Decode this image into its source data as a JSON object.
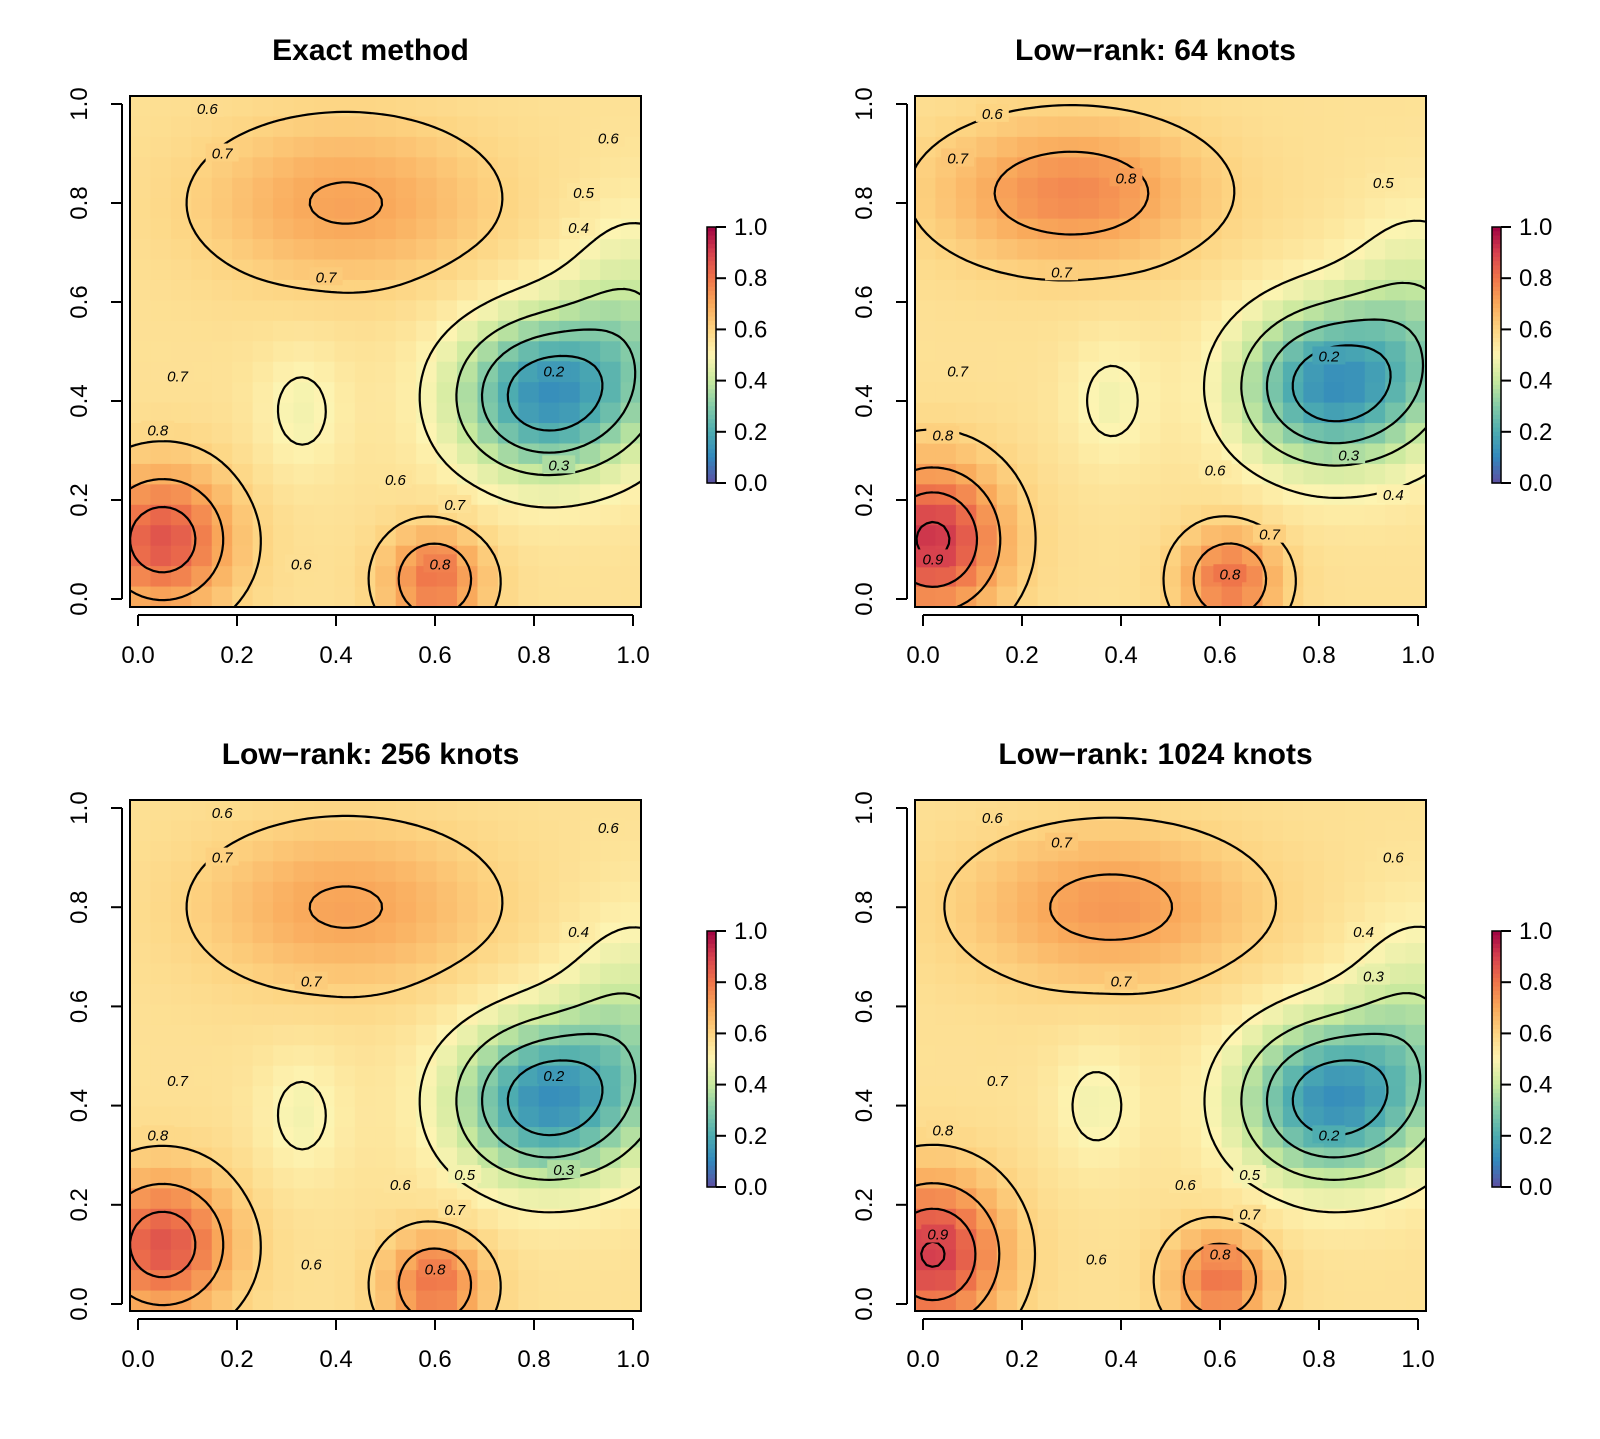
{
  "chart_data": [
    {
      "type": "heatmap",
      "title": "Exact method",
      "xlabel": "",
      "ylabel": "",
      "xlim": [
        0,
        1
      ],
      "ylim": [
        0,
        1
      ],
      "xticks": [
        "0.0",
        "0.2",
        "0.4",
        "0.6",
        "0.8",
        "1.0"
      ],
      "yticks": [
        "0.0",
        "0.2",
        "0.4",
        "0.6",
        "0.8",
        "1.0"
      ],
      "colorbar": {
        "range": [
          0,
          1
        ],
        "ticks": [
          "0.0",
          "0.2",
          "0.4",
          "0.6",
          "0.8",
          "1.0"
        ]
      },
      "features": [
        {
          "x": 0.05,
          "y": 0.12,
          "amp": 0.3,
          "sx": 0.14,
          "sy": 0.14
        },
        {
          "x": 0.42,
          "y": 0.8,
          "amp": 0.15,
          "sx": 0.28,
          "sy": 0.16
        },
        {
          "x": 0.6,
          "y": 0.04,
          "amp": 0.24,
          "sx": 0.1,
          "sy": 0.1
        },
        {
          "x": 0.82,
          "y": 0.41,
          "amp": -0.42,
          "sx": 0.18,
          "sy": 0.16
        },
        {
          "x": 1.0,
          "y": 0.55,
          "amp": -0.15,
          "sx": 0.14,
          "sy": 0.22
        },
        {
          "x": 0.33,
          "y": 0.38,
          "amp": -0.08,
          "sx": 0.09,
          "sy": 0.13
        }
      ],
      "contour_labels": [
        {
          "x": 0.14,
          "y": 0.99,
          "label": "0.6"
        },
        {
          "x": 0.17,
          "y": 0.9,
          "label": "0.7"
        },
        {
          "x": 0.38,
          "y": 0.65,
          "label": "0.7"
        },
        {
          "x": 0.95,
          "y": 0.93,
          "label": "0.6"
        },
        {
          "x": 0.9,
          "y": 0.82,
          "label": "0.5"
        },
        {
          "x": 0.89,
          "y": 0.75,
          "label": "0.4"
        },
        {
          "x": 0.08,
          "y": 0.45,
          "label": "0.7"
        },
        {
          "x": 0.04,
          "y": 0.34,
          "label": "0.8"
        },
        {
          "x": 0.84,
          "y": 0.46,
          "label": "0.2"
        },
        {
          "x": 0.85,
          "y": 0.27,
          "label": "0.3"
        },
        {
          "x": 0.52,
          "y": 0.24,
          "label": "0.6"
        },
        {
          "x": 0.64,
          "y": 0.19,
          "label": "0.7"
        },
        {
          "x": 0.33,
          "y": 0.07,
          "label": "0.6"
        },
        {
          "x": 0.61,
          "y": 0.07,
          "label": "0.8"
        }
      ]
    },
    {
      "type": "heatmap",
      "title": "Low−rank: 64 knots",
      "xlabel": "",
      "ylabel": "",
      "xlim": [
        0,
        1
      ],
      "ylim": [
        0,
        1
      ],
      "xticks": [
        "0.0",
        "0.2",
        "0.4",
        "0.6",
        "0.8",
        "1.0"
      ],
      "yticks": [
        "0.0",
        "0.2",
        "0.4",
        "0.6",
        "0.8",
        "1.0"
      ],
      "colorbar": {
        "range": [
          0,
          1
        ],
        "ticks": [
          "0.0",
          "0.2",
          "0.4",
          "0.6",
          "0.8",
          "1.0"
        ]
      },
      "features": [
        {
          "x": 0.02,
          "y": 0.12,
          "amp": 0.36,
          "sx": 0.14,
          "sy": 0.15
        },
        {
          "x": 0.3,
          "y": 0.82,
          "amp": 0.2,
          "sx": 0.26,
          "sy": 0.14
        },
        {
          "x": 0.62,
          "y": 0.04,
          "amp": 0.24,
          "sx": 0.1,
          "sy": 0.1
        },
        {
          "x": 0.82,
          "y": 0.43,
          "amp": -0.42,
          "sx": 0.18,
          "sy": 0.16
        },
        {
          "x": 1.0,
          "y": 0.55,
          "amp": -0.15,
          "sx": 0.14,
          "sy": 0.22
        },
        {
          "x": 0.38,
          "y": 0.4,
          "amp": -0.08,
          "sx": 0.09,
          "sy": 0.13
        }
      ],
      "contour_labels": [
        {
          "x": 0.14,
          "y": 0.98,
          "label": "0.6"
        },
        {
          "x": 0.07,
          "y": 0.89,
          "label": "0.7"
        },
        {
          "x": 0.41,
          "y": 0.85,
          "label": "0.8"
        },
        {
          "x": 0.28,
          "y": 0.66,
          "label": "0.7"
        },
        {
          "x": 0.93,
          "y": 0.84,
          "label": "0.5"
        },
        {
          "x": 0.07,
          "y": 0.46,
          "label": "0.7"
        },
        {
          "x": 0.04,
          "y": 0.33,
          "label": "0.8"
        },
        {
          "x": 0.82,
          "y": 0.49,
          "label": "0.2"
        },
        {
          "x": 0.86,
          "y": 0.29,
          "label": "0.3"
        },
        {
          "x": 0.95,
          "y": 0.21,
          "label": "0.4"
        },
        {
          "x": 0.59,
          "y": 0.26,
          "label": "0.6"
        },
        {
          "x": 0.7,
          "y": 0.13,
          "label": "0.7"
        },
        {
          "x": 0.62,
          "y": 0.05,
          "label": "0.8"
        },
        {
          "x": 0.02,
          "y": 0.08,
          "label": "0.9"
        }
      ]
    },
    {
      "type": "heatmap",
      "title": "Low−rank: 256 knots",
      "xlabel": "",
      "ylabel": "",
      "xlim": [
        0,
        1
      ],
      "ylim": [
        0,
        1
      ],
      "xticks": [
        "0.0",
        "0.2",
        "0.4",
        "0.6",
        "0.8",
        "1.0"
      ],
      "yticks": [
        "0.0",
        "0.2",
        "0.4",
        "0.6",
        "0.8",
        "1.0"
      ],
      "colorbar": {
        "range": [
          0,
          1
        ],
        "ticks": [
          "0.0",
          "0.2",
          "0.4",
          "0.6",
          "0.8",
          "1.0"
        ]
      },
      "features": [
        {
          "x": 0.05,
          "y": 0.12,
          "amp": 0.3,
          "sx": 0.14,
          "sy": 0.14
        },
        {
          "x": 0.42,
          "y": 0.8,
          "amp": 0.15,
          "sx": 0.28,
          "sy": 0.16
        },
        {
          "x": 0.6,
          "y": 0.04,
          "amp": 0.24,
          "sx": 0.1,
          "sy": 0.1
        },
        {
          "x": 0.82,
          "y": 0.41,
          "amp": -0.42,
          "sx": 0.18,
          "sy": 0.16
        },
        {
          "x": 1.0,
          "y": 0.55,
          "amp": -0.15,
          "sx": 0.14,
          "sy": 0.22
        },
        {
          "x": 0.33,
          "y": 0.38,
          "amp": -0.08,
          "sx": 0.09,
          "sy": 0.13
        }
      ],
      "contour_labels": [
        {
          "x": 0.17,
          "y": 0.99,
          "label": "0.6"
        },
        {
          "x": 0.17,
          "y": 0.9,
          "label": "0.7"
        },
        {
          "x": 0.35,
          "y": 0.65,
          "label": "0.7"
        },
        {
          "x": 0.95,
          "y": 0.96,
          "label": "0.6"
        },
        {
          "x": 0.89,
          "y": 0.75,
          "label": "0.4"
        },
        {
          "x": 0.08,
          "y": 0.45,
          "label": "0.7"
        },
        {
          "x": 0.04,
          "y": 0.34,
          "label": "0.8"
        },
        {
          "x": 0.84,
          "y": 0.46,
          "label": "0.2"
        },
        {
          "x": 0.86,
          "y": 0.27,
          "label": "0.3"
        },
        {
          "x": 0.66,
          "y": 0.26,
          "label": "0.5"
        },
        {
          "x": 0.53,
          "y": 0.24,
          "label": "0.6"
        },
        {
          "x": 0.64,
          "y": 0.19,
          "label": "0.7"
        },
        {
          "x": 0.35,
          "y": 0.08,
          "label": "0.6"
        },
        {
          "x": 0.6,
          "y": 0.07,
          "label": "0.8"
        }
      ]
    },
    {
      "type": "heatmap",
      "title": "Low−rank: 1024 knots",
      "xlabel": "",
      "ylabel": "",
      "xlim": [
        0,
        1
      ],
      "ylim": [
        0,
        1
      ],
      "xticks": [
        "0.0",
        "0.2",
        "0.4",
        "0.6",
        "0.8",
        "1.0"
      ],
      "yticks": [
        "0.0",
        "0.2",
        "0.4",
        "0.6",
        "0.8",
        "1.0"
      ],
      "colorbar": {
        "range": [
          0,
          1
        ],
        "ticks": [
          "0.0",
          "0.2",
          "0.4",
          "0.6",
          "0.8",
          "1.0"
        ]
      },
      "features": [
        {
          "x": 0.02,
          "y": 0.1,
          "amp": 0.35,
          "sx": 0.14,
          "sy": 0.15
        },
        {
          "x": 0.38,
          "y": 0.8,
          "amp": 0.17,
          "sx": 0.28,
          "sy": 0.15
        },
        {
          "x": 0.6,
          "y": 0.05,
          "amp": 0.24,
          "sx": 0.1,
          "sy": 0.1
        },
        {
          "x": 0.82,
          "y": 0.41,
          "amp": -0.42,
          "sx": 0.18,
          "sy": 0.16
        },
        {
          "x": 1.0,
          "y": 0.55,
          "amp": -0.15,
          "sx": 0.14,
          "sy": 0.22
        },
        {
          "x": 0.35,
          "y": 0.4,
          "amp": -0.08,
          "sx": 0.09,
          "sy": 0.13
        }
      ],
      "contour_labels": [
        {
          "x": 0.14,
          "y": 0.98,
          "label": "0.6"
        },
        {
          "x": 0.28,
          "y": 0.93,
          "label": "0.7"
        },
        {
          "x": 0.4,
          "y": 0.65,
          "label": "0.7"
        },
        {
          "x": 0.95,
          "y": 0.9,
          "label": "0.6"
        },
        {
          "x": 0.89,
          "y": 0.75,
          "label": "0.4"
        },
        {
          "x": 0.91,
          "y": 0.66,
          "label": "0.3"
        },
        {
          "x": 0.15,
          "y": 0.45,
          "label": "0.7"
        },
        {
          "x": 0.04,
          "y": 0.35,
          "label": "0.8"
        },
        {
          "x": 0.82,
          "y": 0.34,
          "label": "0.2"
        },
        {
          "x": 0.66,
          "y": 0.26,
          "label": "0.5"
        },
        {
          "x": 0.53,
          "y": 0.24,
          "label": "0.6"
        },
        {
          "x": 0.66,
          "y": 0.18,
          "label": "0.7"
        },
        {
          "x": 0.35,
          "y": 0.09,
          "label": "0.6"
        },
        {
          "x": 0.6,
          "y": 0.1,
          "label": "0.8"
        },
        {
          "x": 0.03,
          "y": 0.14,
          "label": "0.9"
        }
      ]
    }
  ]
}
